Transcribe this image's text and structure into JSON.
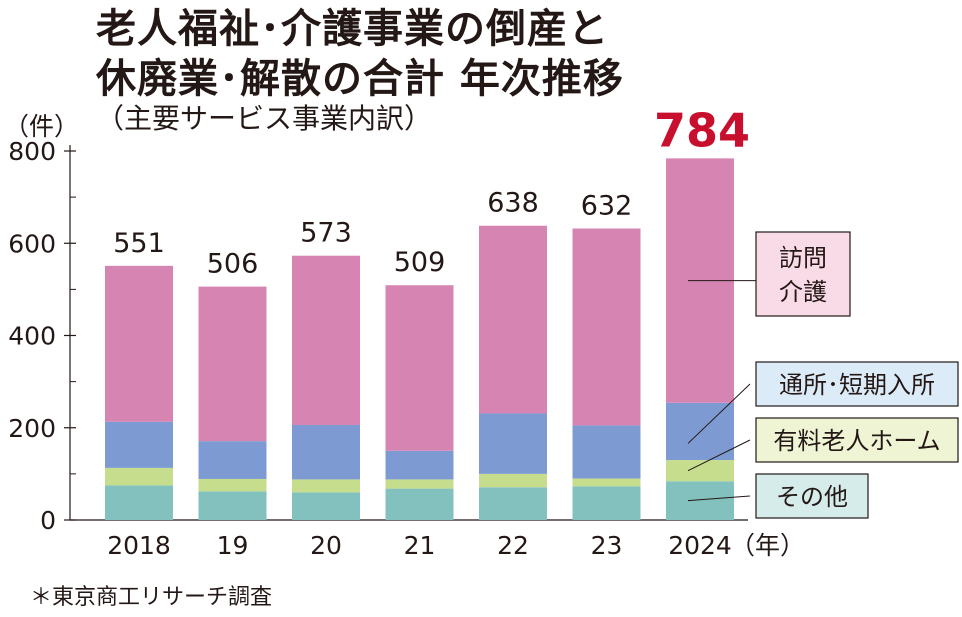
{
  "title_line1": "老人福祉･介護事業の倒産と",
  "title_line2": "休廃業･解散の合計 年次推移",
  "subtitle": "（主要サービス事業内訳）",
  "source": "＊東京商工リサーチ調査",
  "chart_data": {
    "type": "bar",
    "stacked": true,
    "ylabel": "（件）",
    "xlabel": "（年）",
    "ylim": [
      0,
      800
    ],
    "yticks": [
      0,
      200,
      400,
      600,
      800
    ],
    "categories": [
      "2018",
      "19",
      "20",
      "21",
      "22",
      "23",
      "2024"
    ],
    "totals": [
      551,
      506,
      573,
      509,
      638,
      632,
      784
    ],
    "highlight_total_color": "#c8102e",
    "series": [
      {
        "name": "その他",
        "color": "#82c1bd",
        "values": [
          75,
          62,
          60,
          68,
          71,
          73,
          84
        ]
      },
      {
        "name": "有料老人ホーム",
        "color": "#c7dd8e",
        "values": [
          38,
          27,
          28,
          20,
          29,
          17,
          46
        ]
      },
      {
        "name": "通所･短期入所",
        "color": "#7d9bd2",
        "values": [
          100,
          82,
          118,
          62,
          131,
          115,
          124
        ]
      },
      {
        "name": "訪問介護",
        "color": "#d685b3",
        "values": [
          338,
          335,
          367,
          359,
          407,
          427,
          530
        ]
      }
    ],
    "legend_boxes": [
      {
        "label_lines": [
          "訪問",
          "介護"
        ],
        "fill": "#f8dbe7"
      },
      {
        "label_lines": [
          "通所･短期入所"
        ],
        "fill": "#dcebf8"
      },
      {
        "label_lines": [
          "有料老人ホーム"
        ],
        "fill": "#eef4d4"
      },
      {
        "label_lines": [
          "その他"
        ],
        "fill": "#d5ecea"
      }
    ]
  }
}
